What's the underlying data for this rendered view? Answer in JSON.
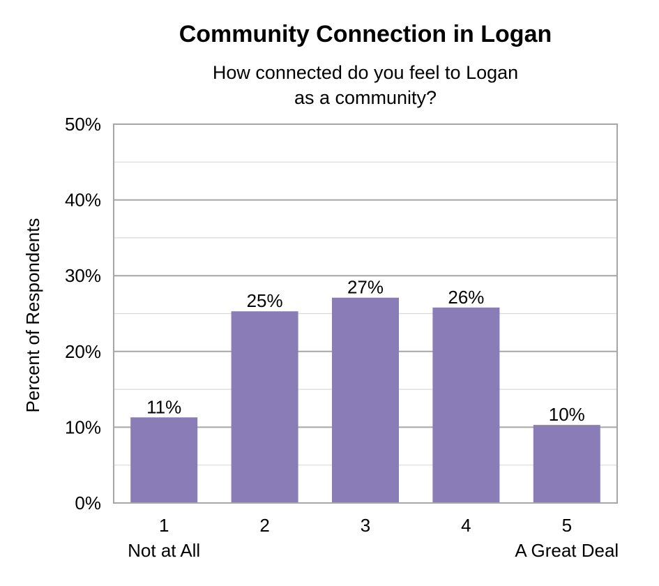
{
  "chart_data": {
    "type": "bar",
    "title": "Community Connection in Logan",
    "subtitle_lines": [
      "How connected do you feel to Logan",
      "as a community?"
    ],
    "ylabel": "Percent of Respondents",
    "categories": [
      "1",
      "2",
      "3",
      "4",
      "5"
    ],
    "category_sublabels": [
      "Not at All",
      "",
      "",
      "",
      "A Great Deal"
    ],
    "values": [
      11,
      25,
      27,
      26,
      10
    ],
    "bar_values": [
      11.3,
      25.3,
      27.1,
      25.8,
      10.3
    ],
    "data_labels": [
      "11%",
      "25%",
      "27%",
      "26%",
      "10%"
    ],
    "ylim": [
      0,
      50
    ],
    "yticks": [
      0,
      10,
      20,
      30,
      40,
      50
    ],
    "ytick_labels": [
      "0%",
      "10%",
      "20%",
      "30%",
      "40%",
      "50%"
    ],
    "grid": true,
    "bar_color": "#8a7db7",
    "gridline_color": "#a6a6a6"
  }
}
